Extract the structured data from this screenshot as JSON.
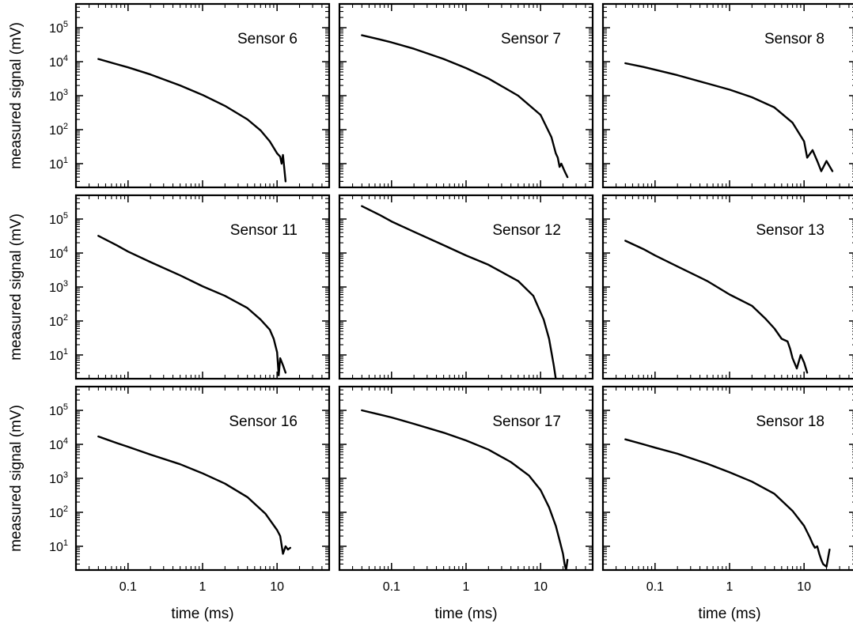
{
  "chart_data": {
    "type": "line",
    "layout": "3x3 grid of log-log panels",
    "xlabel": "time (ms)",
    "ylabel": "measured signal (mV)",
    "xscale": "log",
    "yscale": "log",
    "xlim": [
      0.02,
      50
    ],
    "ylim": [
      2,
      500000
    ],
    "xticks": [
      {
        "value": 0.1,
        "label": "0.1"
      },
      {
        "value": 1,
        "label": "1"
      },
      {
        "value": 10,
        "label": "10"
      }
    ],
    "yticks": [
      {
        "value": 10,
        "base": "10",
        "exp": "1"
      },
      {
        "value": 100,
        "base": "10",
        "exp": "2"
      },
      {
        "value": 1000,
        "base": "10",
        "exp": "3"
      },
      {
        "value": 10000,
        "base": "10",
        "exp": "4"
      },
      {
        "value": 100000,
        "base": "10",
        "exp": "5"
      }
    ],
    "panels": [
      {
        "title": "Sensor 6",
        "series": [
          {
            "x": [
              0.04,
              0.07,
              0.1,
              0.2,
              0.5,
              1,
              2,
              4,
              6,
              8,
              10,
              11,
              11.5,
              12,
              13
            ],
            "y": [
              12000,
              8500,
              6800,
              4200,
              2000,
              1050,
              500,
              200,
              95,
              45,
              20,
              16,
              10,
              18,
              3
            ]
          }
        ]
      },
      {
        "title": "Sensor 7",
        "series": [
          {
            "x": [
              0.04,
              0.07,
              0.1,
              0.2,
              0.5,
              1,
              2,
              5,
              10,
              14,
              16,
              17,
              18,
              19,
              21,
              23
            ],
            "y": [
              60000,
              45000,
              37000,
              24000,
              12000,
              6500,
              3200,
              1000,
              270,
              60,
              20,
              15,
              8,
              10,
              6,
              4
            ]
          }
        ]
      },
      {
        "title": "Sensor 8",
        "series": [
          {
            "x": [
              0.04,
              0.07,
              0.1,
              0.2,
              0.5,
              1,
              2,
              4,
              7,
              10,
              11,
              13,
              15,
              17,
              20,
              24
            ],
            "y": [
              9000,
              7000,
              5800,
              4000,
              2300,
              1500,
              900,
              450,
              160,
              45,
              15,
              25,
              12,
              6,
              12,
              6
            ]
          }
        ]
      },
      {
        "title": "Sensor 11",
        "series": [
          {
            "x": [
              0.04,
              0.07,
              0.1,
              0.2,
              0.5,
              1,
              2,
              4,
              6,
              8,
              9,
              10,
              10.5,
              11,
              12,
              13
            ],
            "y": [
              32000,
              17000,
              11000,
              5400,
              2200,
              1050,
              550,
              240,
              110,
              55,
              30,
              12,
              2.5,
              8,
              5,
              3
            ]
          }
        ]
      },
      {
        "title": "Sensor 12",
        "series": [
          {
            "x": [
              0.04,
              0.07,
              0.1,
              0.2,
              0.5,
              1,
              2,
              5,
              8,
              11,
              13,
              15,
              16
            ],
            "y": [
              240000,
              130000,
              85000,
              42000,
              17000,
              8500,
              4500,
              1500,
              550,
              110,
              30,
              5,
              2
            ]
          }
        ]
      },
      {
        "title": "Sensor 13",
        "series": [
          {
            "x": [
              0.04,
              0.07,
              0.1,
              0.2,
              0.5,
              1,
              2,
              3,
              4,
              5,
              6,
              6.5,
              7,
              8,
              9,
              10,
              11
            ],
            "y": [
              23000,
              13000,
              8500,
              4000,
              1500,
              600,
              280,
              120,
              60,
              30,
              25,
              15,
              8,
              4,
              10,
              6,
              3
            ]
          }
        ]
      },
      {
        "title": "Sensor 16",
        "series": [
          {
            "x": [
              0.04,
              0.07,
              0.1,
              0.2,
              0.5,
              1,
              2,
              4,
              7,
              10,
              11,
              12,
              13,
              14,
              15
            ],
            "y": [
              17000,
              11000,
              8500,
              5000,
              2600,
              1400,
              700,
              280,
              90,
              30,
              20,
              6,
              10,
              8,
              9
            ]
          }
        ]
      },
      {
        "title": "Sensor 17",
        "series": [
          {
            "x": [
              0.04,
              0.07,
              0.1,
              0.2,
              0.5,
              1,
              2,
              4,
              7,
              10,
              13,
              16,
              18,
              20,
              21,
              22,
              23
            ],
            "y": [
              100000,
              75000,
              62000,
              40000,
              22000,
              13000,
              7000,
              3000,
              1200,
              450,
              140,
              40,
              15,
              6,
              3,
              2,
              4
            ]
          }
        ]
      },
      {
        "title": "Sensor 18",
        "series": [
          {
            "x": [
              0.04,
              0.07,
              0.1,
              0.2,
              0.5,
              1,
              2,
              4,
              7,
              10,
              12,
              13,
              14,
              15,
              16,
              17,
              18,
              20,
              22
            ],
            "y": [
              14000,
              10000,
              8000,
              5300,
              2700,
              1500,
              800,
              350,
              110,
              40,
              18,
              12,
              9,
              10,
              6,
              4,
              3,
              2.5,
              8
            ]
          }
        ]
      }
    ]
  }
}
